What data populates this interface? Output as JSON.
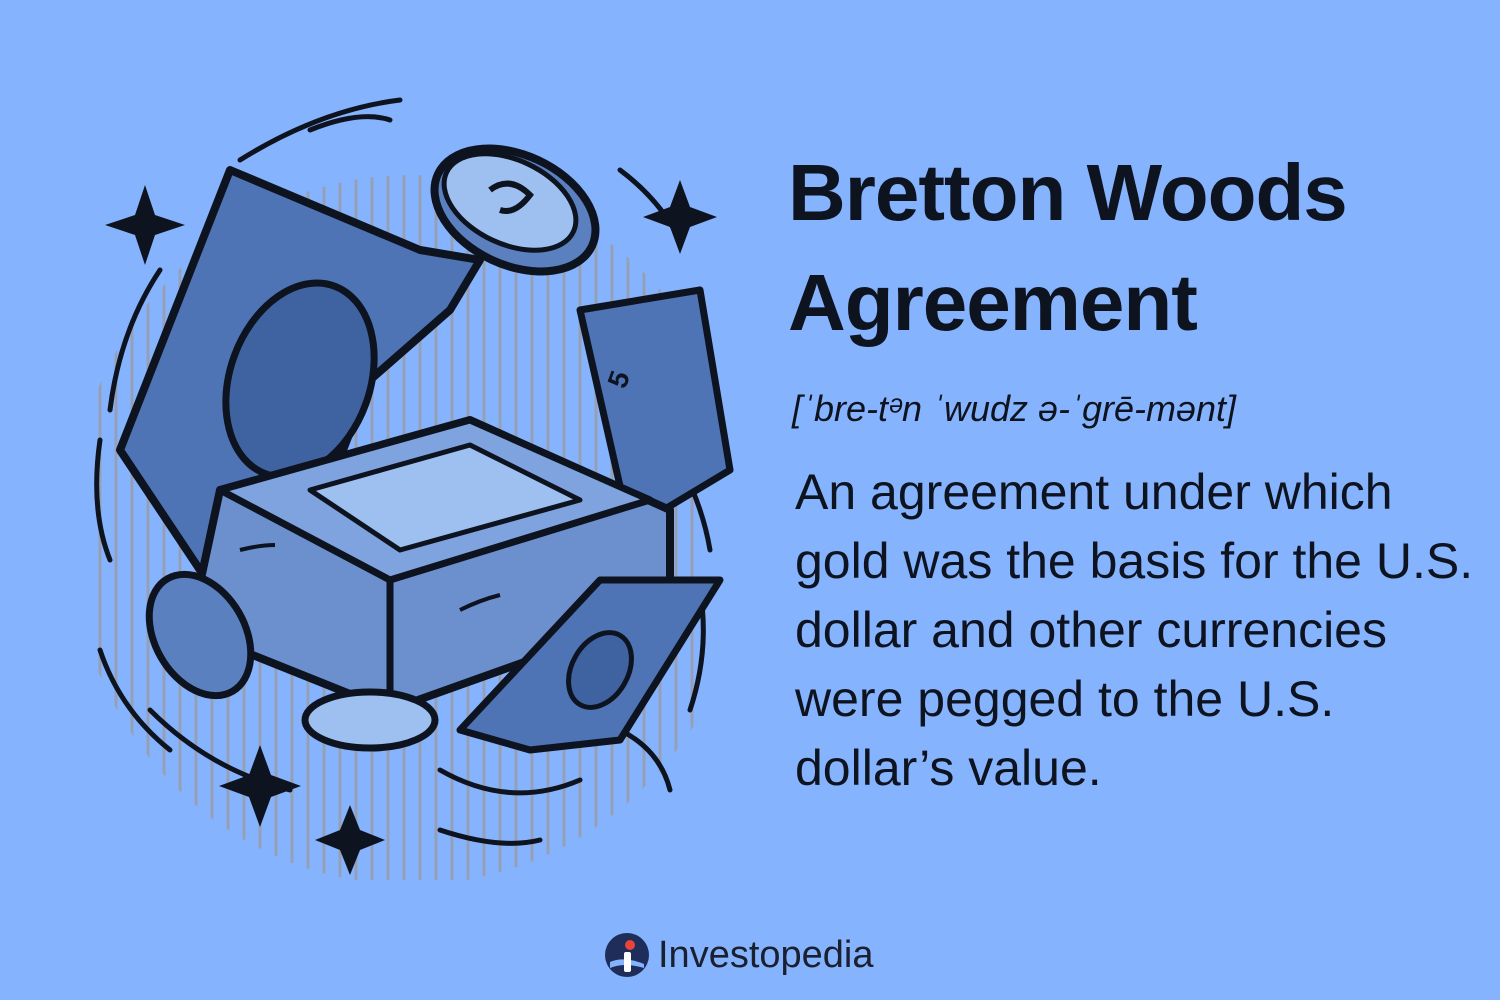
{
  "card": {
    "title": "Bretton Woods Agreement",
    "pronunciation": "[ˈbre-tᵊn ˈwudz ə-ˈgrē-mənt]",
    "definition": "An agreement under which gold was the basis for the U.S. dollar and other currencies were pegged to the U.S. dollar’s value."
  },
  "brand": {
    "name": "Investopedia",
    "icon": "investopedia-logo-icon"
  },
  "illustration": {
    "icons": [
      "gold-bar-icon",
      "banknote-icon",
      "coin-icon",
      "sparkle-icon"
    ],
    "colors": {
      "background": "#86b3fd",
      "ink": "#0e1320",
      "fill": "#4f74b5",
      "light": "#9ec0f0"
    }
  }
}
